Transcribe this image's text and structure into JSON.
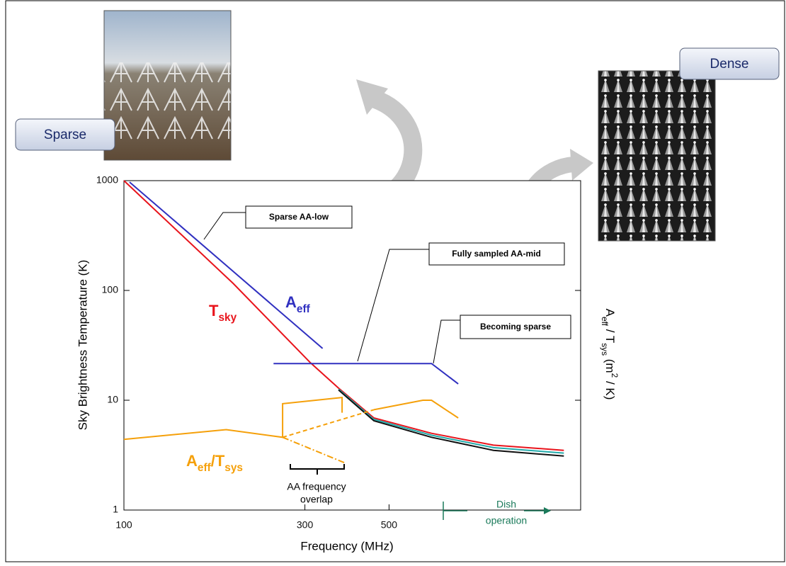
{
  "chart_data": {
    "type": "line",
    "xlabel": "Frequency (MHz)",
    "ylabel": "Sky Brightness Temperature (K)",
    "y2label": [
      {
        "text": "A"
      },
      {
        "text": "eff",
        "style": "sub"
      },
      {
        "text": " / T"
      },
      {
        "text": "sys",
        "style": "sub"
      },
      {
        "text": "  (m"
      },
      {
        "text": "2",
        "style": "sup"
      },
      {
        "text": " / K)"
      }
    ],
    "xscale": "log",
    "yscale": "log",
    "xlim": [
      100,
      1600
    ],
    "ylim": [
      1,
      1000
    ],
    "xticks": [
      100,
      300,
      500
    ],
    "yticks": [
      1,
      10,
      100,
      1000
    ],
    "series": [
      {
        "color": "#e8141c",
        "x": [
          100,
          194,
          310,
          368,
          456,
          647,
          942,
          1445
        ],
        "values": [
          1000,
          116,
          22,
          12.9,
          6.9,
          5.0,
          3.9,
          3.5
        ]
      },
      {
        "color": "#22aaaa",
        "x": [
          368,
          456,
          647,
          942,
          1445
        ],
        "values": [
          12.6,
          6.7,
          4.8,
          3.7,
          3.3
        ]
      },
      {
        "color": "#111111",
        "x": [
          368,
          456,
          647,
          942,
          1445
        ],
        "values": [
          12.4,
          6.5,
          4.6,
          3.5,
          3.1
        ]
      },
      {
        "color": "#3030c0",
        "x": [
          103.5,
          334
        ],
        "values": [
          970,
          29.6
        ]
      },
      {
        "color": "#3030c0",
        "x": [
          248,
          647,
          761
        ],
        "values": [
          21.6,
          21.6,
          14.1
        ]
      },
      {
        "color": "#f5a00a",
        "x": [
          100,
          186,
          262,
          262,
          376,
          376
        ],
        "values": [
          4.4,
          5.4,
          4.6,
          9.3,
          10.6,
          7.7
        ]
      },
      {
        "color": "#f5a00a",
        "dash": "6,4",
        "x": [
          262,
          456
        ],
        "values": [
          4.6,
          8.2
        ]
      },
      {
        "color": "#f5a00a",
        "x": [
          456,
          614,
          647,
          761
        ],
        "values": [
          8.2,
          10,
          10,
          6.9
        ]
      },
      {
        "color": "#f5a00a",
        "dash": "9,3,2,3",
        "x": [
          262,
          381
        ],
        "values": [
          4.6,
          2.7
        ]
      }
    ],
    "curve_labels": [
      {
        "color": "#e8141c",
        "parts": [
          {
            "text": "T"
          },
          {
            "text": "sky",
            "style": "sub"
          }
        ]
      },
      {
        "color": "#3030c0",
        "parts": [
          {
            "text": "A"
          },
          {
            "text": "eff",
            "style": "sub"
          }
        ]
      },
      {
        "color": "#f5a00a",
        "parts": [
          {
            "text": "A"
          },
          {
            "text": "eff",
            "style": "sub"
          },
          {
            "text": "/T"
          },
          {
            "text": "sys",
            "style": "sub"
          }
        ]
      }
    ],
    "callouts": [
      "Sparse AA-low",
      "Fully sampled AA-mid",
      "Becoming sparse"
    ],
    "overlap_note": [
      "AA frequency",
      "overlap"
    ],
    "dish_note": [
      "Dish",
      "operation"
    ],
    "photo_labels": [
      "Sparse",
      "Dense"
    ]
  }
}
